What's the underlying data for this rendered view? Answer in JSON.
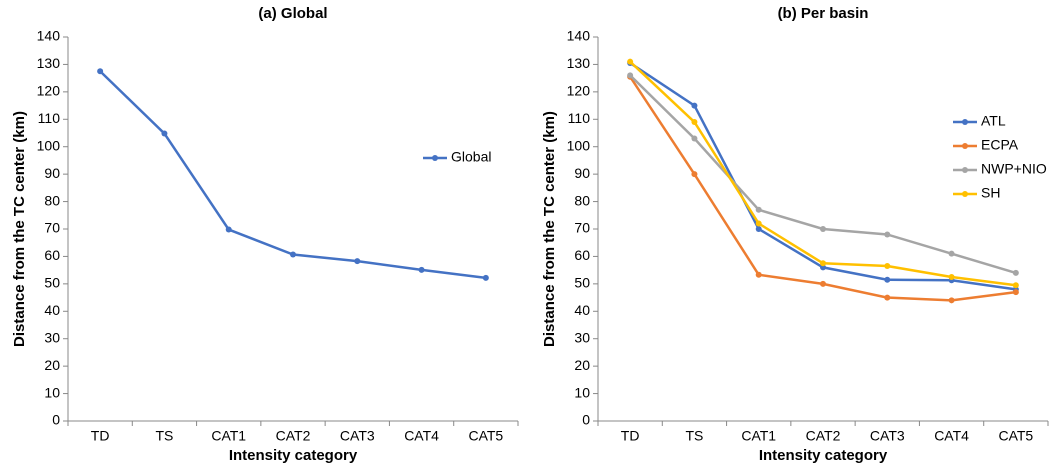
{
  "chart_data": [
    {
      "type": "line",
      "title": "(a)  Global",
      "x_label": "Intensity category",
      "y_label": "Distance from the TC center (km)",
      "categories": [
        "TD",
        "TS",
        "CAT1",
        "CAT2",
        "CAT3",
        "CAT4",
        "CAT5"
      ],
      "series": [
        {
          "name": "Global",
          "color": "#4472c4",
          "values": [
            127.5,
            104.8,
            69.8,
            60.7,
            58.3,
            55.1,
            52.2
          ]
        }
      ],
      "ylim": [
        0,
        140
      ],
      "yticks": [
        0,
        10,
        20,
        30,
        40,
        50,
        60,
        70,
        80,
        90,
        100,
        110,
        120,
        130,
        140
      ],
      "legend": "right"
    },
    {
      "type": "line",
      "title": "(b)  Per basin",
      "x_label": "Intensity category",
      "y_label": "Distance from the TC center (km)",
      "categories": [
        "TD",
        "TS",
        "CAT1",
        "CAT2",
        "CAT3",
        "CAT4",
        "CAT5"
      ],
      "series": [
        {
          "name": "ATL",
          "color": "#4472c4",
          "values": [
            130.5,
            115,
            70,
            56,
            51.5,
            51.3,
            48
          ]
        },
        {
          "name": "ECPA",
          "color": "#ed7d31",
          "values": [
            125.5,
            90,
            53.3,
            50,
            45,
            44,
            47
          ]
        },
        {
          "name": "NWP+NIO",
          "color": "#a5a5a5",
          "values": [
            126,
            103,
            77,
            70,
            68,
            61,
            54
          ]
        },
        {
          "name": "SH",
          "color": "#ffc000",
          "values": [
            131,
            109,
            72,
            57.5,
            56.5,
            52.5,
            49.5
          ]
        }
      ],
      "ylim": [
        0,
        140
      ],
      "yticks": [
        0,
        10,
        20,
        30,
        40,
        50,
        60,
        70,
        80,
        90,
        100,
        110,
        120,
        130,
        140
      ],
      "legend": "upper right"
    }
  ]
}
